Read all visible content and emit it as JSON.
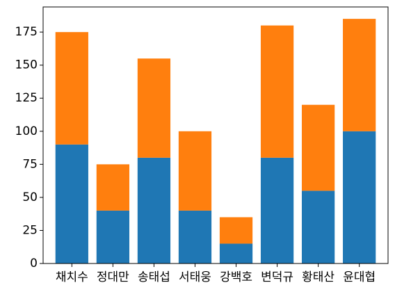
{
  "chart_data": {
    "type": "bar",
    "stacked": true,
    "categories": [
      "채치수",
      "정대만",
      "송태섭",
      "서태웅",
      "강백호",
      "변덕규",
      "황태산",
      "윤대협"
    ],
    "series": [
      {
        "values": [
          90,
          40,
          80,
          40,
          15,
          80,
          55,
          100
        ],
        "color": "#1f77b4"
      },
      {
        "values": [
          85,
          35,
          75,
          60,
          20,
          100,
          65,
          85
        ],
        "color": "#ff7f0e"
      }
    ],
    "title": "",
    "xlabel": "",
    "ylabel": "",
    "ylim": [
      0,
      194
    ],
    "yticks": [
      0,
      25,
      50,
      75,
      100,
      125,
      150,
      175
    ],
    "grid": false,
    "legend": "none"
  }
}
